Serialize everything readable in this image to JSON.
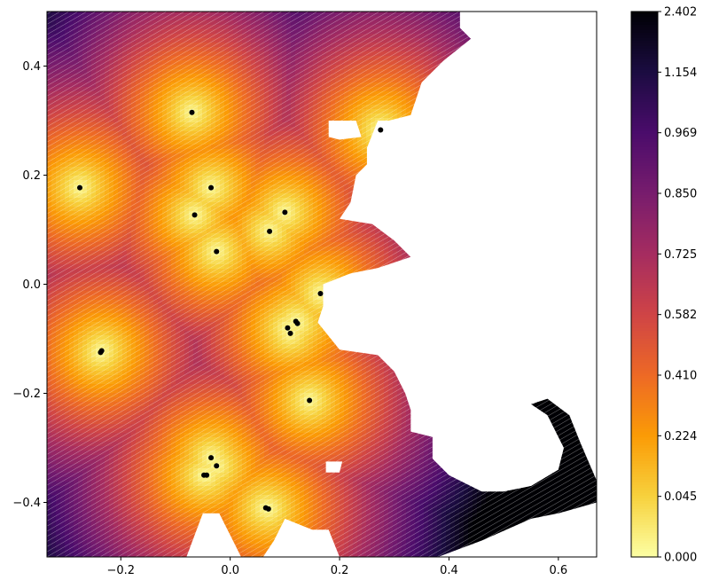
{
  "chart_data": {
    "type": "heatmap",
    "title": "",
    "xlabel": "",
    "ylabel": "",
    "xlim": [
      -0.335,
      0.67
    ],
    "ylim": [
      -0.5,
      0.5
    ],
    "xticks": [
      -0.2,
      0.0,
      0.2,
      0.4,
      0.6
    ],
    "xtick_labels": [
      "−0.2",
      "0.0",
      "0.2",
      "0.4",
      "0.6"
    ],
    "yticks": [
      -0.4,
      -0.2,
      0.0,
      0.2,
      0.4
    ],
    "ytick_labels": [
      "−0.4",
      "−0.2",
      "0.0",
      "0.2",
      "0.4"
    ],
    "colormap": "inferno_r",
    "colorbar": {
      "ticks": [
        "0.000",
        "0.045",
        "0.224",
        "0.410",
        "0.582",
        "0.725",
        "0.850",
        "0.969",
        "1.154",
        "2.402"
      ],
      "stops": [
        "#fcffa4",
        "#f7d13d",
        "#fb9b06",
        "#ed6925",
        "#cf4446",
        "#a52c60",
        "#781c6d",
        "#4a0c6b",
        "#1b0c41",
        "#000004"
      ]
    },
    "sites": [
      {
        "x": -0.07,
        "y": 0.315
      },
      {
        "x": -0.275,
        "y": 0.177
      },
      {
        "x": -0.035,
        "y": 0.177
      },
      {
        "x": -0.065,
        "y": 0.127
      },
      {
        "x": -0.025,
        "y": 0.06
      },
      {
        "x": 0.1,
        "y": 0.132
      },
      {
        "x": 0.072,
        "y": 0.097
      },
      {
        "x": 0.275,
        "y": 0.283
      },
      {
        "x": 0.165,
        "y": -0.017
      },
      {
        "x": 0.12,
        "y": -0.068
      },
      {
        "x": 0.123,
        "y": -0.072
      },
      {
        "x": 0.105,
        "y": -0.08
      },
      {
        "x": 0.11,
        "y": -0.09
      },
      {
        "x": -0.235,
        "y": -0.122
      },
      {
        "x": -0.237,
        "y": -0.125
      },
      {
        "x": 0.145,
        "y": -0.213
      },
      {
        "x": -0.035,
        "y": -0.318
      },
      {
        "x": -0.025,
        "y": -0.333
      },
      {
        "x": -0.048,
        "y": -0.35
      },
      {
        "x": -0.043,
        "y": -0.35
      },
      {
        "x": 0.065,
        "y": -0.41
      },
      {
        "x": 0.07,
        "y": -0.412
      }
    ],
    "land_outline": [
      [
        -0.335,
        0.5
      ],
      [
        0.42,
        0.5
      ],
      [
        0.42,
        0.47
      ],
      [
        0.44,
        0.45
      ],
      [
        0.39,
        0.41
      ],
      [
        0.35,
        0.37
      ],
      [
        0.33,
        0.31
      ],
      [
        0.29,
        0.3
      ],
      [
        0.27,
        0.3
      ],
      [
        0.25,
        0.25
      ],
      [
        0.25,
        0.22
      ],
      [
        0.23,
        0.2
      ],
      [
        0.22,
        0.15
      ],
      [
        0.2,
        0.12
      ],
      [
        0.26,
        0.11
      ],
      [
        0.3,
        0.08
      ],
      [
        0.33,
        0.05
      ],
      [
        0.27,
        0.03
      ],
      [
        0.22,
        0.02
      ],
      [
        0.17,
        0.0
      ],
      [
        0.17,
        -0.04
      ],
      [
        0.16,
        -0.07
      ],
      [
        0.2,
        -0.12
      ],
      [
        0.27,
        -0.13
      ],
      [
        0.3,
        -0.16
      ],
      [
        0.32,
        -0.2
      ],
      [
        0.33,
        -0.23
      ],
      [
        0.33,
        -0.27
      ],
      [
        0.37,
        -0.28
      ],
      [
        0.37,
        -0.32
      ],
      [
        0.4,
        -0.35
      ],
      [
        0.46,
        -0.38
      ],
      [
        0.5,
        -0.38
      ],
      [
        0.55,
        -0.37
      ],
      [
        0.6,
        -0.34
      ],
      [
        0.61,
        -0.3
      ],
      [
        0.58,
        -0.24
      ],
      [
        0.55,
        -0.22
      ],
      [
        0.58,
        -0.21
      ],
      [
        0.62,
        -0.24
      ],
      [
        0.64,
        -0.29
      ],
      [
        0.67,
        -0.36
      ],
      [
        0.67,
        -0.4
      ],
      [
        0.6,
        -0.42
      ],
      [
        0.55,
        -0.43
      ],
      [
        0.46,
        -0.47
      ],
      [
        0.38,
        -0.5
      ],
      [
        0.2,
        -0.5
      ],
      [
        0.18,
        -0.45
      ],
      [
        0.15,
        -0.45
      ],
      [
        0.1,
        -0.43
      ],
      [
        0.08,
        -0.47
      ],
      [
        0.06,
        -0.5
      ],
      [
        0.02,
        -0.5
      ],
      [
        0.0,
        -0.46
      ],
      [
        -0.02,
        -0.42
      ],
      [
        -0.05,
        -0.42
      ],
      [
        -0.08,
        -0.5
      ],
      [
        -0.335,
        -0.5
      ]
    ],
    "holes": [
      [
        [
          0.18,
          0.3
        ],
        [
          0.23,
          0.3
        ],
        [
          0.24,
          0.27
        ],
        [
          0.2,
          0.265
        ],
        [
          0.18,
          0.27
        ]
      ],
      [
        [
          0.175,
          -0.325
        ],
        [
          0.205,
          -0.325
        ],
        [
          0.2,
          -0.345
        ],
        [
          0.175,
          -0.345
        ]
      ]
    ]
  }
}
